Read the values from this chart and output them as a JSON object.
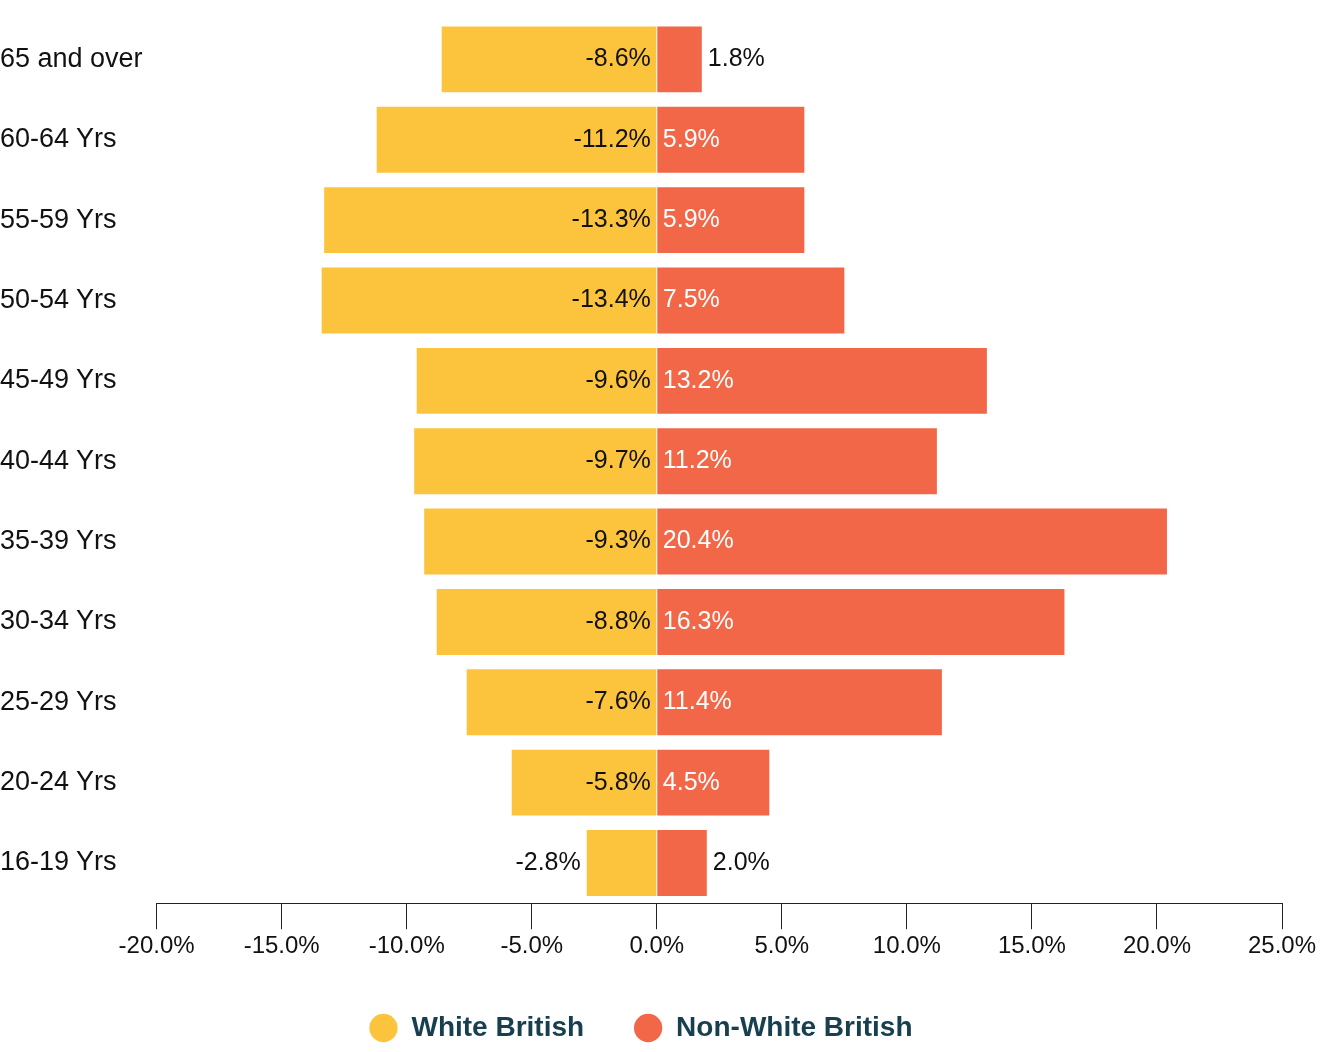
{
  "chart_data": {
    "type": "bar",
    "orientation": "horizontal",
    "stacked": true,
    "categories": [
      "65 and over",
      "60-64 Yrs",
      "55-59 Yrs",
      "50-54 Yrs",
      "45-49 Yrs",
      "40-44 Yrs",
      "35-39 Yrs",
      "30-34 Yrs",
      "25-29 Yrs",
      "20-24 Yrs",
      "16-19 Yrs"
    ],
    "series": [
      {
        "name": "White British",
        "color": "#fcc43d",
        "values": [
          -8.6,
          -11.2,
          -13.3,
          -13.4,
          -9.6,
          -9.7,
          -9.3,
          -8.8,
          -7.6,
          -5.8,
          -2.8
        ],
        "value_labels": [
          "-8.6%",
          "-11.2%",
          "-13.3%",
          "-13.4%",
          "-9.6%",
          "-9.7%",
          "-9.3%",
          "-8.8%",
          "-7.6%",
          "-5.8%",
          "-2.8%"
        ]
      },
      {
        "name": "Non-White British",
        "color": "#f26748",
        "values": [
          1.8,
          5.9,
          5.9,
          7.5,
          13.2,
          11.2,
          20.4,
          16.3,
          11.4,
          4.5,
          2.0
        ],
        "value_labels": [
          "1.8%",
          "5.9%",
          "5.9%",
          "7.5%",
          "13.2%",
          "11.2%",
          "20.4%",
          "16.3%",
          "11.4%",
          "4.5%",
          "2.0%"
        ]
      }
    ],
    "xlim": [
      -20,
      25
    ],
    "xticks": [
      {
        "value": -20,
        "label": "-20.0%"
      },
      {
        "value": -15,
        "label": "-15.0%"
      },
      {
        "value": -10,
        "label": "-10.0%"
      },
      {
        "value": -5,
        "label": "-5.0%"
      },
      {
        "value": 0,
        "label": "0.0%"
      },
      {
        "value": 5,
        "label": "5.0%"
      },
      {
        "value": 10,
        "label": "10.0%"
      },
      {
        "value": 15,
        "label": "15.0%"
      },
      {
        "value": 20,
        "label": "20.0%"
      },
      {
        "value": 25,
        "label": "25.0%"
      }
    ],
    "grid": false,
    "legend": "bottom"
  }
}
